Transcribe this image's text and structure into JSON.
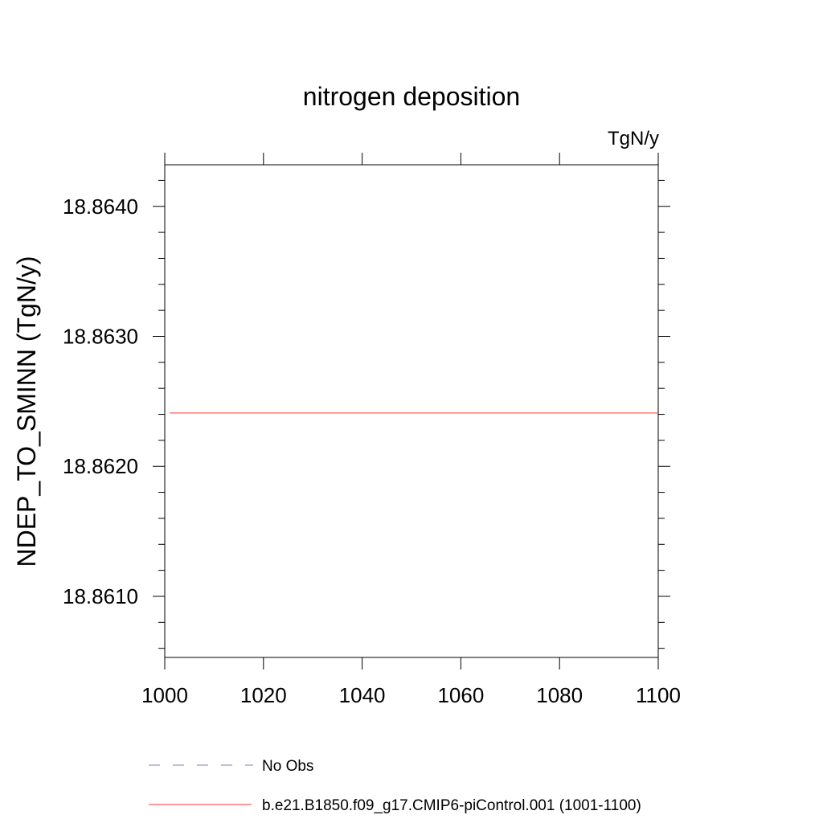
{
  "chart_data": {
    "type": "line",
    "title": "nitrogen deposition",
    "units_label": "TgN/y",
    "xlabel": "",
    "ylabel": "NDEP_TO_SMINN  (TgN/y)",
    "xlim": [
      1000,
      1100
    ],
    "ylim": [
      18.86053,
      18.86432
    ],
    "x_major_ticks": [
      1000,
      1020,
      1040,
      1060,
      1080,
      1100
    ],
    "x_tick_labels": [
      "1000",
      "1020",
      "1040",
      "1060",
      "1080",
      "1100"
    ],
    "x_minor_step": 20,
    "y_major_ticks": [
      18.861,
      18.862,
      18.863,
      18.864
    ],
    "y_tick_labels": [
      "18.8610",
      "18.8620",
      "18.8630",
      "18.8640"
    ],
    "y_minor_step": 0.0002,
    "grid": false,
    "legend_position": "bottom",
    "series": [
      {
        "name": "No Obs",
        "style": "dashed",
        "color": "#7f7fbf",
        "x": [],
        "y": []
      },
      {
        "name": "b.e21.B1850.f09_g17.CMIP6-piControl.001 (1001-1100)",
        "style": "solid",
        "color": "#ff3030",
        "x": [
          1001,
          1050,
          1100
        ],
        "y": [
          18.86241,
          18.86241,
          18.86241
        ]
      }
    ]
  }
}
